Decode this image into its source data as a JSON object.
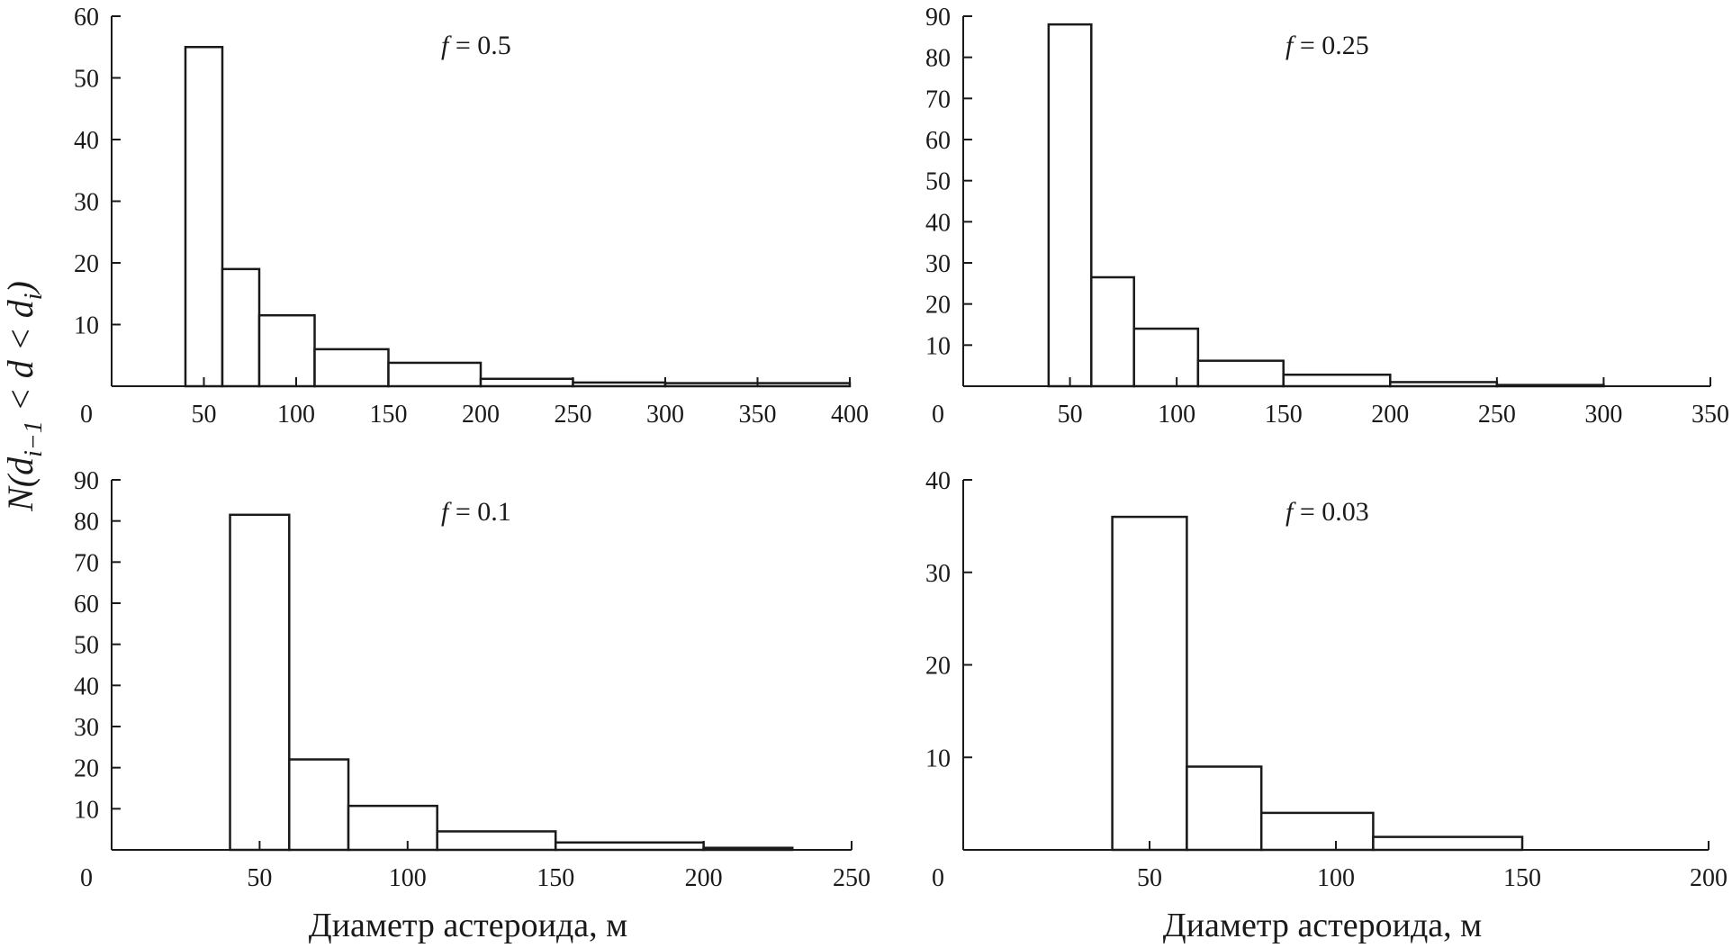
{
  "figure": {
    "ylabel": {
      "prefix": "N(d",
      "sub1": "i−1",
      "middle": " < d < d",
      "sub2": "i",
      "suffix": ")"
    },
    "xlabel": "Диаметр астероида, м"
  },
  "chart_data": [
    {
      "type": "bar",
      "annotation": {
        "var": "f",
        "text": " = 0.5"
      },
      "bins": [
        [
          40,
          60
        ],
        [
          60,
          80
        ],
        [
          80,
          110
        ],
        [
          110,
          150
        ],
        [
          150,
          200
        ],
        [
          200,
          250
        ],
        [
          250,
          300
        ],
        [
          300,
          400
        ]
      ],
      "values": [
        55,
        19,
        11.5,
        6,
        3.8,
        1.2,
        0.6,
        0.5
      ],
      "xlim": [
        0,
        400
      ],
      "ylim": [
        0,
        60
      ],
      "xticks": [
        0,
        50,
        100,
        150,
        200,
        250,
        300,
        350,
        400
      ],
      "yticks": [
        10,
        20,
        30,
        40,
        50,
        60
      ],
      "xlabel": ""
    },
    {
      "type": "bar",
      "annotation": {
        "var": "f",
        "text": " = 0.25"
      },
      "bins": [
        [
          40,
          60
        ],
        [
          60,
          80
        ],
        [
          80,
          110
        ],
        [
          110,
          150
        ],
        [
          150,
          200
        ],
        [
          200,
          250
        ],
        [
          250,
          300
        ]
      ],
      "values": [
        88,
        26.5,
        14,
        6.2,
        2.8,
        1,
        0.3
      ],
      "xlim": [
        0,
        350
      ],
      "ylim": [
        0,
        90
      ],
      "xticks": [
        0,
        50,
        100,
        150,
        200,
        250,
        300,
        350
      ],
      "yticks": [
        10,
        20,
        30,
        40,
        50,
        60,
        70,
        80,
        90
      ],
      "xlabel": ""
    },
    {
      "type": "bar",
      "annotation": {
        "var": "f",
        "text": " = 0.1"
      },
      "bins": [
        [
          40,
          60
        ],
        [
          60,
          80
        ],
        [
          80,
          110
        ],
        [
          110,
          150
        ],
        [
          150,
          200
        ],
        [
          200,
          230
        ]
      ],
      "values": [
        81.5,
        22,
        10.7,
        4.5,
        1.8,
        0.5
      ],
      "xlim": [
        0,
        250
      ],
      "ylim": [
        0,
        90
      ],
      "xticks": [
        0,
        50,
        100,
        150,
        200,
        250
      ],
      "yticks": [
        10,
        20,
        30,
        40,
        50,
        60,
        70,
        80,
        90
      ],
      "xlabel": "Диаметр астероида, м"
    },
    {
      "type": "bar",
      "annotation": {
        "var": "f",
        "text": " = 0.03"
      },
      "bins": [
        [
          40,
          60
        ],
        [
          60,
          80
        ],
        [
          80,
          110
        ],
        [
          110,
          150
        ]
      ],
      "values": [
        36,
        9,
        4,
        1.4
      ],
      "xlim": [
        0,
        200
      ],
      "ylim": [
        0,
        40
      ],
      "xticks": [
        0,
        50,
        100,
        150,
        200
      ],
      "yticks": [
        10,
        20,
        30,
        40
      ],
      "xlabel": "Диаметр астероида, м"
    }
  ]
}
